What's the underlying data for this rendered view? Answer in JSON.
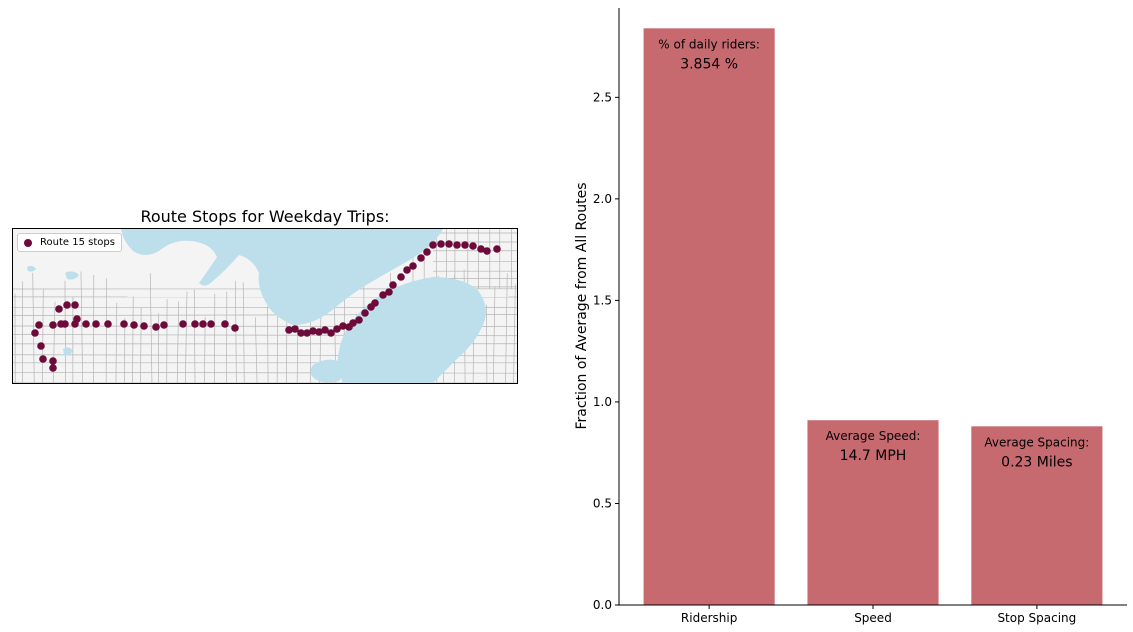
{
  "map": {
    "title": "Route Stops for Weekday Trips:",
    "legend_label": "Route 15 stops",
    "stop_color": "#6d0a3a",
    "water_color": "#bddfeb",
    "land_color": "#f4f4f4",
    "street_color": "#b5b5b5"
  },
  "chart_data": {
    "type": "bar",
    "categories": [
      "Ridership",
      "Speed",
      "Stop Spacing"
    ],
    "values": [
      2.84,
      0.91,
      0.88
    ],
    "ylabel": "Fraction of Average from All Routes",
    "xlabel": "",
    "ylim": [
      0,
      2.94
    ],
    "yticks": [
      "0.0",
      "0.5",
      "1.0",
      "1.5",
      "2.0",
      "2.5"
    ],
    "bar_color": "#c66a70",
    "annotations": [
      {
        "label": "% of daily riders:",
        "value": "3.854 %"
      },
      {
        "label": "Average Speed:",
        "value": "14.7 MPH"
      },
      {
        "label": "Average Spacing:",
        "value": "0.23 Miles"
      }
    ]
  }
}
